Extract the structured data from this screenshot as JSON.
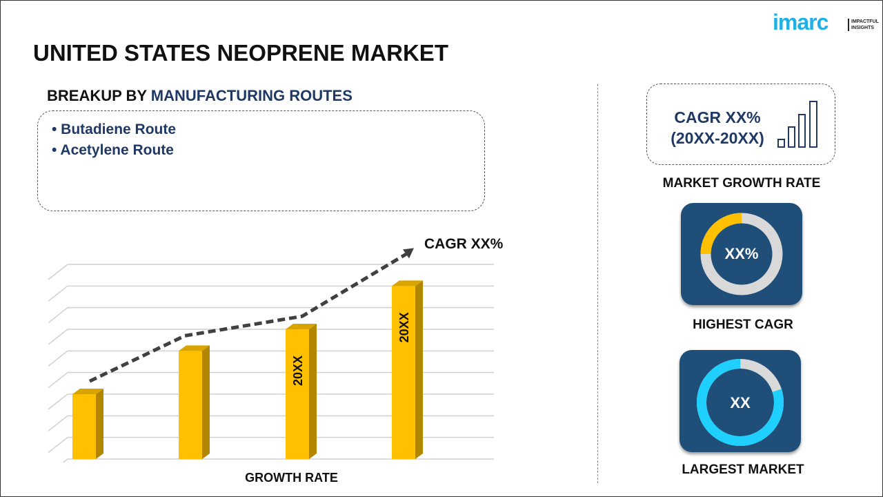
{
  "brand": {
    "name": "imarc",
    "tagline_1": "IMPACTFUL",
    "tagline_2": "INSIGHTS",
    "color": "#1fb0e6"
  },
  "title": "UNITED STATES NEOPRENE MARKET",
  "breakup": {
    "prefix": "BREAKUP BY ",
    "highlight": "MANUFACTURING ROUTES",
    "items": [
      "• Butadiene Route",
      "• Acetylene Route"
    ]
  },
  "chart_data": {
    "type": "bar",
    "categories": [
      "",
      "",
      "",
      ""
    ],
    "values": [
      3,
      5,
      6,
      8
    ],
    "bar_labels": [
      "",
      "",
      "20XX",
      "20XX"
    ],
    "trend_line": [
      3.6,
      5.7,
      6.6,
      9.5
    ],
    "trend_label": "CAGR XX%",
    "xlabel": "GROWTH RATE",
    "ylim": [
      0,
      9
    ],
    "grid": true,
    "colors": {
      "bar": "#ffc000",
      "bar_side": "#b38600",
      "line": "#404040"
    }
  },
  "right": {
    "cagr_line1": "CAGR XX%",
    "cagr_line2": "(20XX-20XX)",
    "market_growth_label": "MARKET GROWTH RATE",
    "highest_cagr_value": "XX%",
    "highest_cagr_label": "HIGHEST CAGR",
    "highest_cagr_fraction": 0.25,
    "largest_market_value": "XX",
    "largest_market_label": "LARGEST MARKET",
    "largest_market_fraction": 0.8,
    "colors": {
      "tile": "#1f4e79",
      "donut1": "#ffc000",
      "donut2": "#1fd0ff",
      "track": "#d9d9d9"
    }
  }
}
